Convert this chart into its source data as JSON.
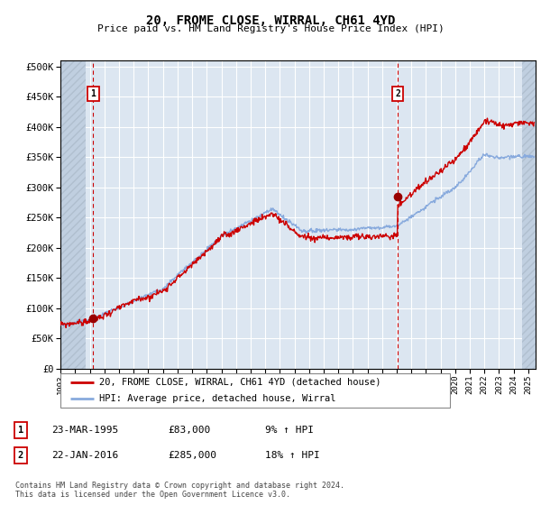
{
  "title": "20, FROME CLOSE, WIRRAL, CH61 4YD",
  "subtitle": "Price paid vs. HM Land Registry's House Price Index (HPI)",
  "ytick_values": [
    0,
    50000,
    100000,
    150000,
    200000,
    250000,
    300000,
    350000,
    400000,
    450000,
    500000
  ],
  "ylim": [
    0,
    510000
  ],
  "xlim_start": 1993.0,
  "xlim_end": 2025.5,
  "hatch_left_end": 1994.7,
  "hatch_right_start": 2024.6,
  "background_color": "#ffffff",
  "plot_bg_color": "#dce6f1",
  "hatched_region_color": "#c0cfe0",
  "grid_color": "#ffffff",
  "sale1_year": 1995.23,
  "sale1_price": 83000,
  "sale2_year": 2016.06,
  "sale2_price": 285000,
  "legend_line1": "20, FROME CLOSE, WIRRAL, CH61 4YD (detached house)",
  "legend_line2": "HPI: Average price, detached house, Wirral",
  "table_row1": [
    "1",
    "23-MAR-1995",
    "£83,000",
    "9% ↑ HPI"
  ],
  "table_row2": [
    "2",
    "22-JAN-2016",
    "£285,000",
    "18% ↑ HPI"
  ],
  "footer": "Contains HM Land Registry data © Crown copyright and database right 2024.\nThis data is licensed under the Open Government Licence v3.0.",
  "xtick_years": [
    1993,
    1994,
    1995,
    1996,
    1997,
    1998,
    1999,
    2000,
    2001,
    2002,
    2003,
    2004,
    2005,
    2006,
    2007,
    2008,
    2009,
    2010,
    2011,
    2012,
    2013,
    2014,
    2015,
    2016,
    2017,
    2018,
    2019,
    2020,
    2021,
    2022,
    2023,
    2024,
    2025
  ],
  "price_paid_color": "#cc0000",
  "hpi_color": "#88aadd",
  "sale_marker_color": "#990000",
  "vline_color": "#cc0000",
  "label_box_color": "#cc0000"
}
